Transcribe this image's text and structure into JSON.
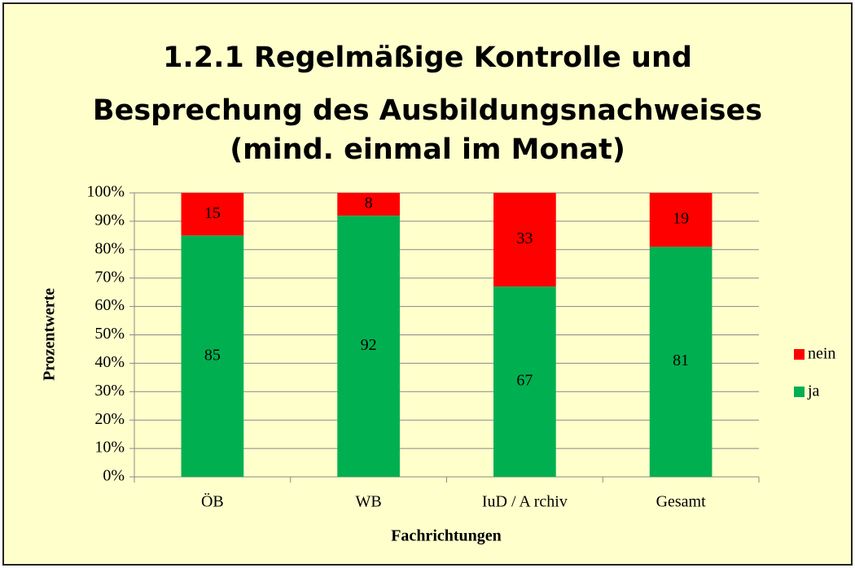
{
  "chart_data": {
    "type": "stacked_bar",
    "title": [
      "1.2.1 Regelmäßige Kontrolle und",
      "Besprechung des Ausbildungsnachweises",
      "(mind. einmal im Monat)"
    ],
    "xlabel": "Fachrichtungen",
    "ylabel": "Prozentwerte",
    "categories": [
      "ÖB",
      "WB",
      "IuD / A rchiv",
      "Gesamt"
    ],
    "series": [
      {
        "name": "ja",
        "color": "#00b050",
        "values": [
          85,
          92,
          67,
          81
        ]
      },
      {
        "name": "nein",
        "color": "#ff0000",
        "values": [
          15,
          8,
          33,
          19
        ]
      }
    ],
    "ylim": [
      0,
      100
    ],
    "yticks": [
      {
        "value": 0,
        "label": "0%"
      },
      {
        "value": 10,
        "label": "10%"
      },
      {
        "value": 20,
        "label": "20%"
      },
      {
        "value": 30,
        "label": "30%"
      },
      {
        "value": 40,
        "label": "40%"
      },
      {
        "value": 50,
        "label": "50%"
      },
      {
        "value": 60,
        "label": "60%"
      },
      {
        "value": 70,
        "label": "70%"
      },
      {
        "value": 80,
        "label": "80%"
      },
      {
        "value": 90,
        "label": "90%"
      },
      {
        "value": 100,
        "label": "100%"
      }
    ],
    "grid": true,
    "legend": "right"
  }
}
